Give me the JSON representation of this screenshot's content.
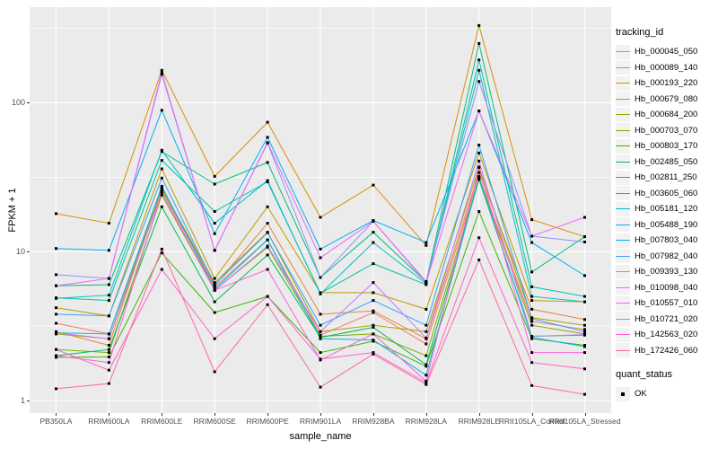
{
  "figure": {
    "panel_background": "#EBEBEB",
    "grid_color": "#FFFFFF",
    "axis_text_color": "#4D4D4D",
    "point_color": "#000000"
  },
  "axes": {
    "y": {
      "title": "FPKM + 1",
      "scale": "log10",
      "ticks": [
        "100",
        "10",
        "1"
      ]
    },
    "x": {
      "title": "sample_name"
    }
  },
  "legend": {
    "tracking": {
      "title": "tracking_id"
    },
    "quant": {
      "title": "quant_status",
      "items": [
        {
          "label": "OK",
          "marker": "black-square"
        }
      ]
    }
  },
  "chart_data": {
    "type": "line",
    "title": "",
    "xlabel": "sample_name",
    "ylabel": "FPKM + 1",
    "yscale": "log10",
    "yticks": [
      1,
      10,
      100
    ],
    "ylim": [
      0.82,
      430
    ],
    "grid": true,
    "legend_position": "right",
    "marker": "square",
    "marker_color": "#000000",
    "categories": [
      "PB350LA",
      "RRIM600LA",
      "RRIM600LE",
      "RRIM600SE",
      "RRIM600PE",
      "RRIM901LA",
      "RRIM928BA",
      "RRIM928LA",
      "RRIM928LE",
      "RRII105LA_Control",
      "RRII105LA_Stressed"
    ],
    "series": [
      {
        "name": "Hb_000045_050",
        "color": "#F8766D",
        "values": [
          3.3,
          2.8,
          26,
          5.8,
          12.0,
          2.75,
          3.9,
          2.4,
          32,
          3.4,
          3.0
        ]
      },
      {
        "name": "Hb_000089_140",
        "color": "#EA8331",
        "values": [
          2.9,
          2.35,
          27,
          5.9,
          15.5,
          3.8,
          4.0,
          2.6,
          34,
          4.1,
          3.5
        ]
      },
      {
        "name": "Hb_000193_220",
        "color": "#D89000",
        "values": [
          18.0,
          15.5,
          165,
          32,
          74,
          17.0,
          28,
          11.0,
          330,
          16.4,
          12.6
        ]
      },
      {
        "name": "Hb_000679_080",
        "color": "#C09B00",
        "values": [
          4.2,
          3.7,
          36,
          6.6,
          20,
          5.3,
          5.3,
          4.1,
          46,
          4.7,
          4.6
        ]
      },
      {
        "name": "Hb_000684_200",
        "color": "#A3A500",
        "values": [
          2.8,
          2.6,
          26.5,
          6.2,
          13.5,
          2.9,
          3.2,
          2.9,
          37,
          3.6,
          3.2
        ]
      },
      {
        "name": "Hb_000703_070",
        "color": "#7CAE00",
        "values": [
          2.2,
          2.1,
          24,
          5.5,
          10.7,
          2.7,
          2.8,
          2.0,
          31,
          3.2,
          2.8
        ]
      },
      {
        "name": "Hb_000803_170",
        "color": "#39B600",
        "values": [
          1.95,
          1.96,
          9.8,
          3.9,
          5.0,
          2.1,
          2.5,
          1.7,
          18.6,
          2.6,
          2.35
        ]
      },
      {
        "name": "Hb_002485_050",
        "color": "#00BB4E",
        "values": [
          2.0,
          2.2,
          20,
          4.6,
          9.5,
          2.65,
          3.1,
          1.74,
          30.5,
          2.7,
          2.75
        ]
      },
      {
        "name": "Hb_002811_250",
        "color": "#00BF7D",
        "values": [
          5.9,
          6.0,
          47,
          28.4,
          39.7,
          6.7,
          13.5,
          6.25,
          250,
          7.3,
          12.6
        ]
      },
      {
        "name": "Hb_003605_060",
        "color": "#00C1A3",
        "values": [
          4.9,
          4.7,
          41,
          18.6,
          29.4,
          5.25,
          8.3,
          6.0,
          194,
          5.8,
          5.0
        ]
      },
      {
        "name": "Hb_005181_120",
        "color": "#00BFC4",
        "values": [
          4.85,
          5.1,
          48,
          15.5,
          30,
          5.2,
          11.5,
          6.1,
          165,
          5.0,
          4.6
        ]
      },
      {
        "name": "Hb_005488_190",
        "color": "#00BBDA",
        "values": [
          2.85,
          2.8,
          27.5,
          5.6,
          12.0,
          2.6,
          2.55,
          1.48,
          31.5,
          2.65,
          2.3
        ]
      },
      {
        "name": "Hb_007803_040",
        "color": "#00B0F6",
        "values": [
          10.5,
          10.2,
          89,
          13.2,
          58.6,
          10.4,
          16.2,
          11.5,
          88,
          11.5,
          6.9
        ]
      },
      {
        "name": "Hb_007982_040",
        "color": "#35A2FF",
        "values": [
          3.8,
          3.7,
          31.2,
          6.0,
          13.4,
          3.2,
          4.7,
          3.2,
          52,
          3.55,
          2.9
        ]
      },
      {
        "name": "Hb_009393_130",
        "color": "#9590FF",
        "values": [
          7.0,
          6.6,
          155,
          10.2,
          53.5,
          6.7,
          16.0,
          6.3,
          139,
          12.7,
          11.6
        ]
      },
      {
        "name": "Hb_010098_040",
        "color": "#C77CFF",
        "values": [
          2.85,
          2.6,
          25,
          5.5,
          10.9,
          2.9,
          6.2,
          2.63,
          40.6,
          2.7,
          2.77
        ]
      },
      {
        "name": "Hb_010557_010",
        "color": "#E76BF3",
        "values": [
          5.9,
          6.6,
          160,
          10.2,
          54,
          9.1,
          16.0,
          6.2,
          88,
          12.7,
          17.0
        ]
      },
      {
        "name": "Hb_010721_020",
        "color": "#FA62DB",
        "values": [
          2.0,
          1.8,
          25.1,
          5.5,
          7.6,
          1.87,
          2.8,
          1.35,
          36.7,
          2.1,
          2.1
        ]
      },
      {
        "name": "Hb_142563_020",
        "color": "#FF61C9",
        "values": [
          2.2,
          1.6,
          7.6,
          2.6,
          5.0,
          1.9,
          2.1,
          1.32,
          12.4,
          1.8,
          1.63
        ]
      },
      {
        "name": "Hb_172426_060",
        "color": "#FF67A4",
        "values": [
          1.2,
          1.3,
          10.4,
          1.56,
          4.4,
          1.23,
          2.05,
          1.28,
          8.8,
          1.26,
          1.1
        ]
      }
    ]
  }
}
